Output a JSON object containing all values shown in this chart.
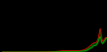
{
  "background_color": "#000000",
  "line_color_upper": "#ff0000",
  "line_color_lower": "#00bb00",
  "fill_color": "#005500",
  "time_points": [
    4500,
    4000,
    3500,
    3000,
    2800,
    2600,
    2400,
    2200,
    2000,
    1800,
    1600,
    1400,
    1200,
    1000,
    900,
    800,
    750,
    700,
    650,
    600,
    542,
    500,
    480,
    460,
    440,
    420,
    400,
    380,
    360,
    340,
    320,
    300,
    280,
    260,
    250,
    240,
    230,
    220,
    210,
    200,
    190,
    180,
    160,
    140,
    120,
    100,
    80,
    60,
    40,
    20,
    0
  ],
  "upper_values": [
    0.001,
    0.001,
    0.001,
    0.001,
    0.002,
    0.003,
    0.005,
    0.01,
    0.015,
    0.02,
    0.02,
    0.02,
    0.02,
    0.03,
    0.05,
    0.07,
    0.09,
    0.1,
    0.12,
    0.13,
    0.14,
    0.14,
    0.14,
    0.15,
    0.16,
    0.17,
    0.19,
    0.21,
    0.24,
    0.28,
    0.32,
    0.35,
    0.31,
    0.26,
    0.24,
    0.22,
    0.2,
    0.19,
    0.18,
    0.17,
    0.16,
    0.16,
    0.17,
    0.18,
    0.19,
    0.2,
    0.21,
    0.22,
    0.22,
    0.22,
    0.21
  ],
  "lower_values": [
    0.0005,
    0.0005,
    0.0005,
    0.0005,
    0.001,
    0.001,
    0.002,
    0.004,
    0.006,
    0.008,
    0.008,
    0.009,
    0.01,
    0.015,
    0.02,
    0.04,
    0.05,
    0.06,
    0.07,
    0.09,
    0.1,
    0.1,
    0.1,
    0.11,
    0.12,
    0.13,
    0.14,
    0.16,
    0.18,
    0.2,
    0.22,
    0.23,
    0.21,
    0.17,
    0.16,
    0.15,
    0.14,
    0.13,
    0.13,
    0.13,
    0.13,
    0.13,
    0.14,
    0.15,
    0.16,
    0.17,
    0.18,
    0.19,
    0.2,
    0.21,
    0.21
  ],
  "xlim": [
    4500,
    0
  ],
  "ylim": [
    0,
    0.35
  ],
  "figsize": [
    1.2,
    0.59
  ],
  "dpi": 100,
  "line_width": 0.5
}
